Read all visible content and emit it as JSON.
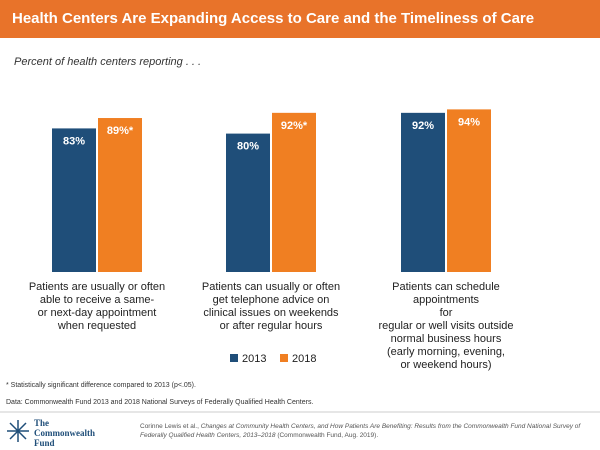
{
  "chart_data": {
    "type": "bar",
    "title": "Health Centers Are Expanding Access to Care and the Timeliness of Care",
    "subtitle": "Percent of health centers reporting . . .",
    "categories": [
      "Patients are usually or often\nable to receive a same-\nor next-day appointment\nwhen requested",
      "Patients can usually or often\nget telephone advice on\nclinical issues on weekends\nor after regular hours",
      "Patients can schedule appointments\nfor\nregular or well visits outside\nnormal business hours\n(early morning, evening,\nor weekend hours)"
    ],
    "series": [
      {
        "name": "2013",
        "color": "#1f4e79",
        "values": [
          83,
          80,
          92
        ],
        "value_labels": [
          "83%",
          "80%",
          "92%"
        ]
      },
      {
        "name": "2018",
        "color": "#f07f22",
        "values": [
          89,
          92,
          94
        ],
        "value_labels": [
          "89%*",
          "92%*",
          "94%"
        ]
      }
    ],
    "ylim": [
      0,
      100
    ],
    "footnote": "* Statistically significant difference compared to 2013 (p<.05).",
    "source": "Data: Commonwealth Fund 2013 and 2018 National Surveys of Federally Qualified Health Centers.",
    "logo": "The\nCommonwealth\nFund",
    "citation": {
      "author": "Corinne Lewis et al., ",
      "title": "Changes at Community Health Centers, and How Patients Are Benefiting: Results from the Commonwealth Fund National Survey of Federally Qualified Health Centers, 2013–2018",
      "source": " (Commonwealth Fund, Aug. 2019)."
    }
  }
}
